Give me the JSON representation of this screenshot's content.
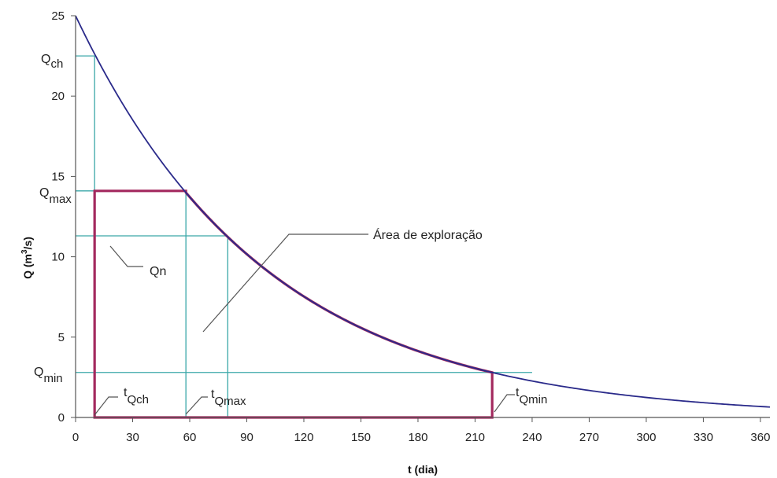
{
  "chart_data": {
    "type": "line",
    "xlabel": "t (dia)",
    "ylabel_main": "Q (m",
    "ylabel_sup": "3",
    "ylabel_tail": "/s)",
    "xlim": [
      0,
      365
    ],
    "ylim": [
      0,
      25
    ],
    "x_ticks": [
      0,
      30,
      60,
      90,
      120,
      150,
      180,
      210,
      240,
      270,
      300,
      330,
      360
    ],
    "y_ticks": [
      0,
      5,
      10,
      15,
      20,
      25
    ],
    "grid": false,
    "recession_curve": {
      "Q0": 25,
      "k": 0.01,
      "x_start": 0,
      "x_end": 365,
      "color": "#2a2a8a"
    },
    "exploration_area": {
      "label": "Área de exploração",
      "t_start": 10,
      "t_end": 219,
      "q_top": 14.1,
      "curve_from": 58,
      "curve_to": 219,
      "color": "#a3295e"
    },
    "reference_lines": [
      {
        "name": "Q_ch",
        "q": 22.5,
        "t": 10
      },
      {
        "name": "Q_max",
        "q": 14.1,
        "t": 58
      },
      {
        "name": "Qn",
        "q": 11.3,
        "t": 80
      },
      {
        "name": "Q_min",
        "q": 2.8,
        "t": 219
      }
    ],
    "ref_color": "#3aa7a8",
    "annotations": {
      "qch_main": "Q",
      "qch_sub": "ch",
      "qmax_main": "Q",
      "qmax_sub": "max",
      "qmin_main": "Q",
      "qmin_sub": "min",
      "qn": "Qn",
      "tqch_main": "t",
      "tqch_sub": "Qch",
      "tqmax_main": "t",
      "tqmax_sub": "Qmax",
      "tqmin_main": "t",
      "tqmin_sub": "Qmin"
    }
  }
}
